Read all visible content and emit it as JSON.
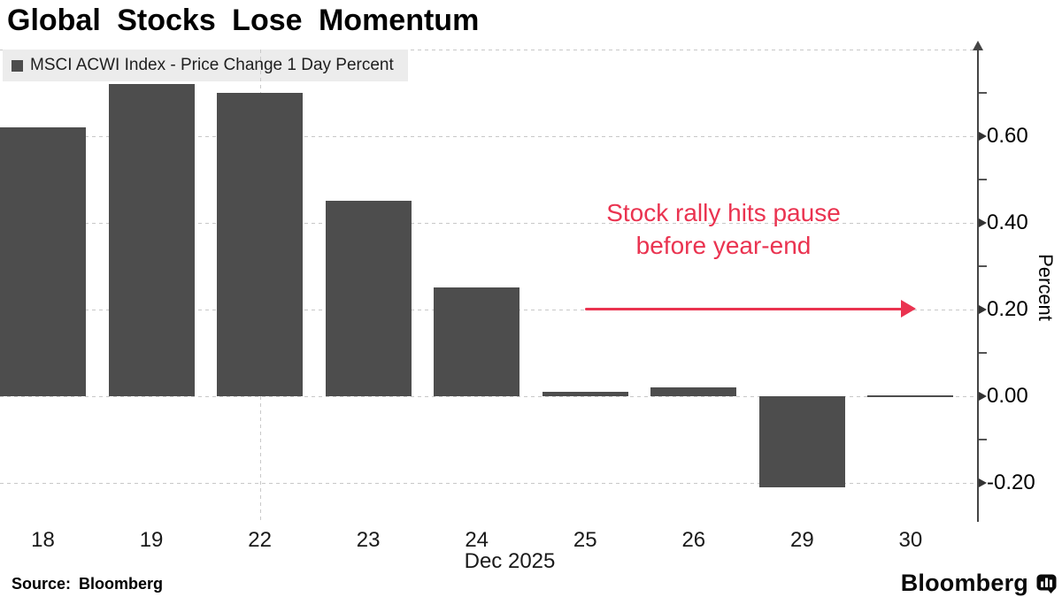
{
  "title": "Global Stocks Lose Momentum",
  "legend": {
    "label": "MSCI ACWI Index - Price Change 1 Day Percent",
    "swatch_color": "#4d4d4d"
  },
  "annotation": {
    "line1": "Stock rally hits pause",
    "line2": "before year-end",
    "color": "#ea3350"
  },
  "axis": {
    "ylabel": "Percent",
    "xlabel": "Dec 2025"
  },
  "footer": {
    "source_label": "Source: Bloomberg",
    "brand": "Bloomberg"
  },
  "colors": {
    "bar": "#4d4d4d",
    "accent_red": "#ea3350",
    "gridline": "#c8c8c8",
    "axis_line": "#454545",
    "legend_bg": "#ececec",
    "background": "#ffffff",
    "text": "#000000"
  },
  "chart_data": {
    "type": "bar",
    "title": "Global Stocks Lose Momentum",
    "series_name": "MSCI ACWI Index - Price Change 1 Day Percent",
    "categories": [
      "18",
      "19",
      "22",
      "23",
      "24",
      "25",
      "26",
      "29",
      "30"
    ],
    "values": [
      0.62,
      0.72,
      0.7,
      0.45,
      0.25,
      0.01,
      0.02,
      -0.21,
      0.0
    ],
    "xlabel": "Dec 2025",
    "ylabel": "Percent",
    "ylim": [
      -0.29,
      0.8
    ],
    "yticks_major": [
      0.6,
      0.4,
      0.2,
      0.0,
      -0.2
    ],
    "ytick_labels": [
      "0.60",
      "0.40",
      "0.20",
      "0.00",
      "-0.20"
    ],
    "yticks_minor": [
      0.7,
      0.5,
      0.3,
      0.1,
      -0.1
    ],
    "gridlines_h": [
      0.8,
      0.6,
      0.4,
      0.2,
      0.0,
      -0.2
    ],
    "vertical_gridline_at": "22",
    "grid": true,
    "legend_position": "top-left",
    "bar_color": "#4d4d4d",
    "annotation": {
      "text": "Stock rally hits pause before year-end",
      "arrow": "horizontal-right",
      "color": "#ea3350"
    }
  }
}
